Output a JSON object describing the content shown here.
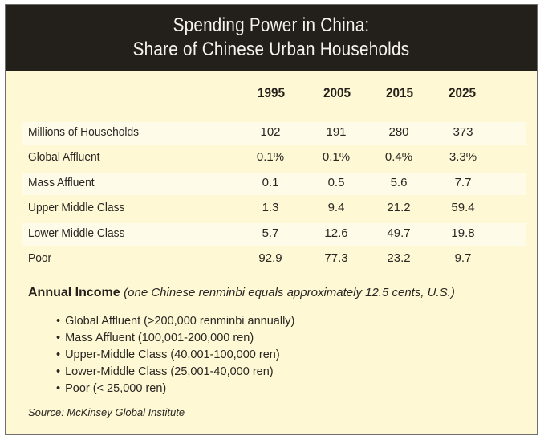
{
  "title_line1": "Spending Power in China:",
  "title_line2": "Share of Chinese Urban Households",
  "chart_data": {
    "type": "table",
    "title": "Spending Power in China: Share of Chinese Urban Households",
    "columns": [
      "1995",
      "2005",
      "2015",
      "2025"
    ],
    "rows": [
      {
        "label": "Millions of Households",
        "values": [
          "102",
          "191",
          "280",
          "373"
        ]
      },
      {
        "label": "Global Affluent",
        "values": [
          "0.1%",
          "0.1%",
          "0.4%",
          "3.3%"
        ]
      },
      {
        "label": "Mass Affluent",
        "values": [
          "0.1",
          "0.5",
          "5.6",
          "7.7"
        ]
      },
      {
        "label": "Upper Middle Class",
        "values": [
          "1.3",
          "9.4",
          "21.2",
          "59.4"
        ]
      },
      {
        "label": "Lower Middle Class",
        "values": [
          "5.7",
          "12.6",
          "49.7",
          "19.8"
        ]
      },
      {
        "label": "Poor",
        "values": [
          "92.9",
          "77.3",
          "23.2",
          "9.7"
        ]
      }
    ]
  },
  "income_note": {
    "heading": "Annual Income",
    "detail": "(one Chinese renminbi equals approximately 12.5 cents, U.S.)",
    "bullets": [
      "Global Affluent (>200,000 renminbi annually)",
      "Mass Affluent (100,001-200,000 ren)",
      "Upper-Middle Class (40,001-100,000 ren)",
      "Lower-Middle Class (25,001-40,000 ren)",
      "Poor (< 25,000 ren)"
    ]
  },
  "source": "Source: McKinsey Global Institute"
}
